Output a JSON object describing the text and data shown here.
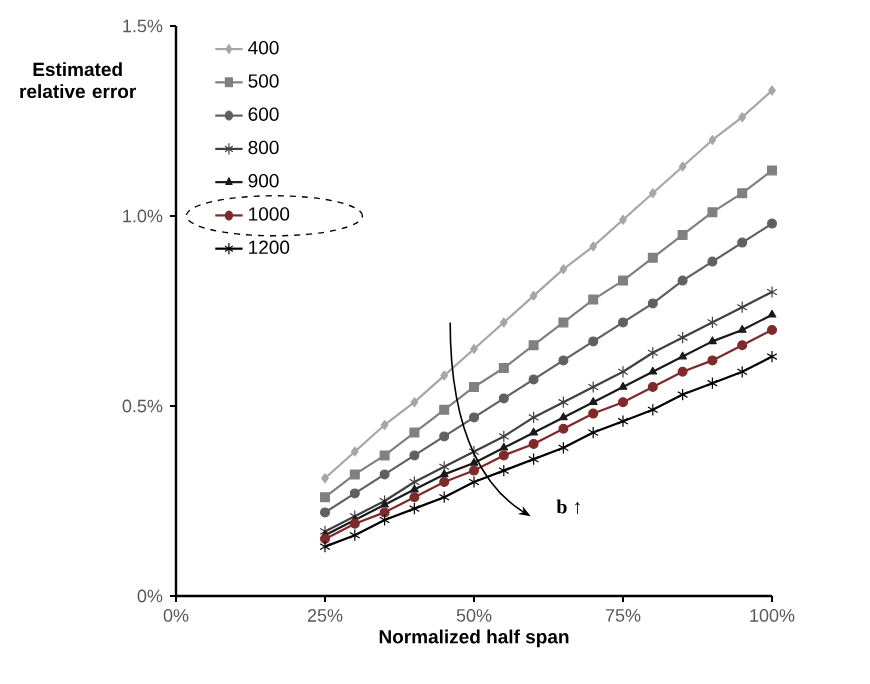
{
  "chart_data": {
    "type": "line",
    "xlabel": "Normalized half span",
    "ylabel": "Estimated relative error",
    "x": [
      25,
      30,
      35,
      40,
      45,
      50,
      55,
      60,
      65,
      70,
      75,
      80,
      85,
      90,
      95,
      100
    ],
    "xlim": [
      0,
      100
    ],
    "ylim": [
      0,
      1.5
    ],
    "xticks": [
      {
        "value": 0,
        "label": "0%"
      },
      {
        "value": 25,
        "label": "25%"
      },
      {
        "value": 50,
        "label": "50%"
      },
      {
        "value": 75,
        "label": "75%"
      },
      {
        "value": 100,
        "label": "100%"
      }
    ],
    "yticks": [
      {
        "value": 0,
        "label": "0%"
      },
      {
        "value": 0.5,
        "label": "0.5%"
      },
      {
        "value": 1.0,
        "label": "1.0%"
      },
      {
        "value": 1.5,
        "label": "1.5%"
      }
    ],
    "grid": false,
    "legend": "top left",
    "line_style": "solid",
    "annotations": [
      "b ↑"
    ],
    "series": [
      {
        "name": "400",
        "color": "#a6a6a6",
        "marker": "diamond",
        "values": [
          0.31,
          0.38,
          0.45,
          0.51,
          0.58,
          0.65,
          0.72,
          0.79,
          0.86,
          0.92,
          0.99,
          1.06,
          1.13,
          1.2,
          1.26,
          1.33
        ]
      },
      {
        "name": "500",
        "color": "#808080",
        "marker": "square",
        "values": [
          0.26,
          0.32,
          0.37,
          0.43,
          0.49,
          0.55,
          0.6,
          0.66,
          0.72,
          0.78,
          0.83,
          0.89,
          0.95,
          1.01,
          1.06,
          1.12
        ]
      },
      {
        "name": "600",
        "color": "#606060",
        "marker": "circle",
        "values": [
          0.22,
          0.27,
          0.32,
          0.37,
          0.42,
          0.47,
          0.52,
          0.57,
          0.62,
          0.67,
          0.72,
          0.77,
          0.83,
          0.88,
          0.93,
          0.98
        ]
      },
      {
        "name": "800",
        "color": "#404040",
        "marker": "cross",
        "values": [
          0.17,
          0.21,
          0.25,
          0.3,
          0.34,
          0.38,
          0.42,
          0.47,
          0.51,
          0.55,
          0.59,
          0.64,
          0.68,
          0.72,
          0.76,
          0.8
        ]
      },
      {
        "name": "900",
        "color": "#1a1a1a",
        "marker": "triangle",
        "values": [
          0.16,
          0.2,
          0.24,
          0.28,
          0.32,
          0.35,
          0.39,
          0.43,
          0.47,
          0.51,
          0.55,
          0.59,
          0.63,
          0.67,
          0.7,
          0.74
        ]
      },
      {
        "name": "1000",
        "color": "#7f2a2a",
        "marker": "circle",
        "values": [
          0.15,
          0.19,
          0.22,
          0.26,
          0.3,
          0.33,
          0.37,
          0.4,
          0.44,
          0.48,
          0.51,
          0.55,
          0.59,
          0.62,
          0.66,
          0.7
        ]
      },
      {
        "name": "1200",
        "color": "#000000",
        "marker": "cross",
        "values": [
          0.13,
          0.16,
          0.2,
          0.23,
          0.26,
          0.3,
          0.33,
          0.36,
          0.39,
          0.43,
          0.46,
          0.49,
          0.53,
          0.56,
          0.59,
          0.63
        ]
      }
    ]
  }
}
